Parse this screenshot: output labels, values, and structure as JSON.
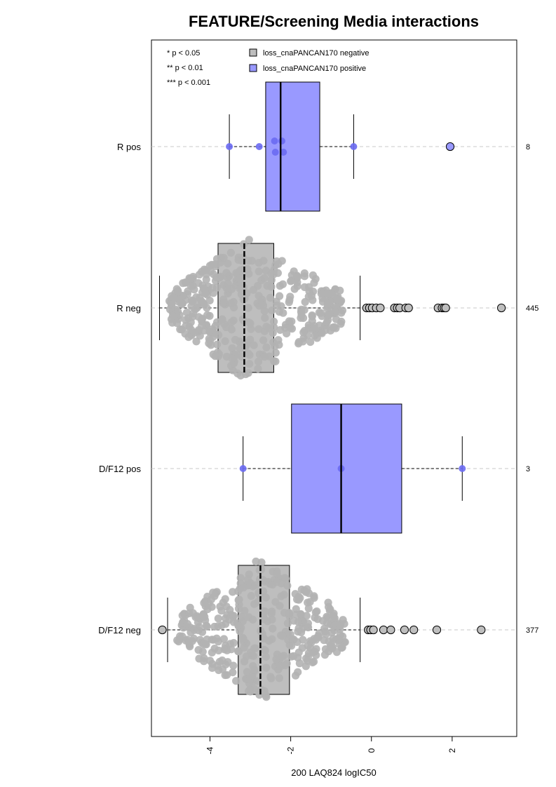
{
  "chart_data": {
    "type": "boxplot",
    "orientation": "horizontal",
    "title": "FEATURE/Screening Media interactions",
    "xlabel": "200 LAQ824 logIC50",
    "ylabel": "",
    "xlim": [
      -5.45,
      3.6
    ],
    "xticks": [
      -4,
      -2,
      0,
      2
    ],
    "xtick_labels": [
      "-4",
      "-2",
      "0",
      "2"
    ],
    "grid": "dashed horizontal guide per group",
    "significance_legend": [
      "* p < 0.05",
      "** p < 0.01",
      "*** p < 0.001"
    ],
    "legend": [
      {
        "label": "loss_cnaPANCAN170 negative",
        "color": "#bebebe"
      },
      {
        "label": "loss_cnaPANCAN170 positive",
        "color": "#9999ff"
      }
    ],
    "groups": [
      {
        "label": "R pos",
        "n": "8",
        "type": "pos",
        "whisker_low": -3.52,
        "q1": -2.62,
        "median": -2.25,
        "q3": -1.28,
        "whisker_high": -0.44,
        "points": [
          {
            "x": -3.52,
            "o": 0
          },
          {
            "x": -2.78,
            "o": 0
          },
          {
            "x": -2.38,
            "o": 0.5
          },
          {
            "x": -2.4,
            "o": -0.5
          },
          {
            "x": -2.18,
            "o": 0.5
          },
          {
            "x": -2.22,
            "o": -0.5
          },
          {
            "x": -0.44,
            "o": 0
          }
        ],
        "outliers": [
          1.95
        ]
      },
      {
        "label": "R neg",
        "n": "445",
        "type": "neg",
        "whisker_low": -5.25,
        "q1": -3.8,
        "median": -3.15,
        "q3": -2.42,
        "whisker_high": -0.28,
        "outliers": [
          -0.12,
          -0.05,
          0.02,
          0.12,
          0.22,
          0.57,
          0.64,
          0.7,
          0.85,
          0.92,
          1.65,
          1.75,
          1.8,
          1.84,
          3.22
        ]
      },
      {
        "label": "D/F12 pos",
        "n": "3",
        "type": "pos",
        "whisker_low": -3.18,
        "q1": -1.98,
        "median": -0.75,
        "q3": 0.75,
        "whisker_high": 2.25,
        "points": [
          {
            "x": -3.18,
            "o": 0
          },
          {
            "x": -0.75,
            "o": 0
          },
          {
            "x": 2.25,
            "o": 0
          }
        ],
        "outliers": []
      },
      {
        "label": "D/F12 neg",
        "n": "377",
        "type": "neg",
        "whisker_low": -5.05,
        "q1": -3.3,
        "median": -2.75,
        "q3": -2.03,
        "whisker_high": -0.28,
        "outliers": [
          -5.18,
          -0.08,
          -0.02,
          0.05,
          0.3,
          0.48,
          0.82,
          1.05,
          1.62,
          2.72
        ]
      }
    ]
  }
}
